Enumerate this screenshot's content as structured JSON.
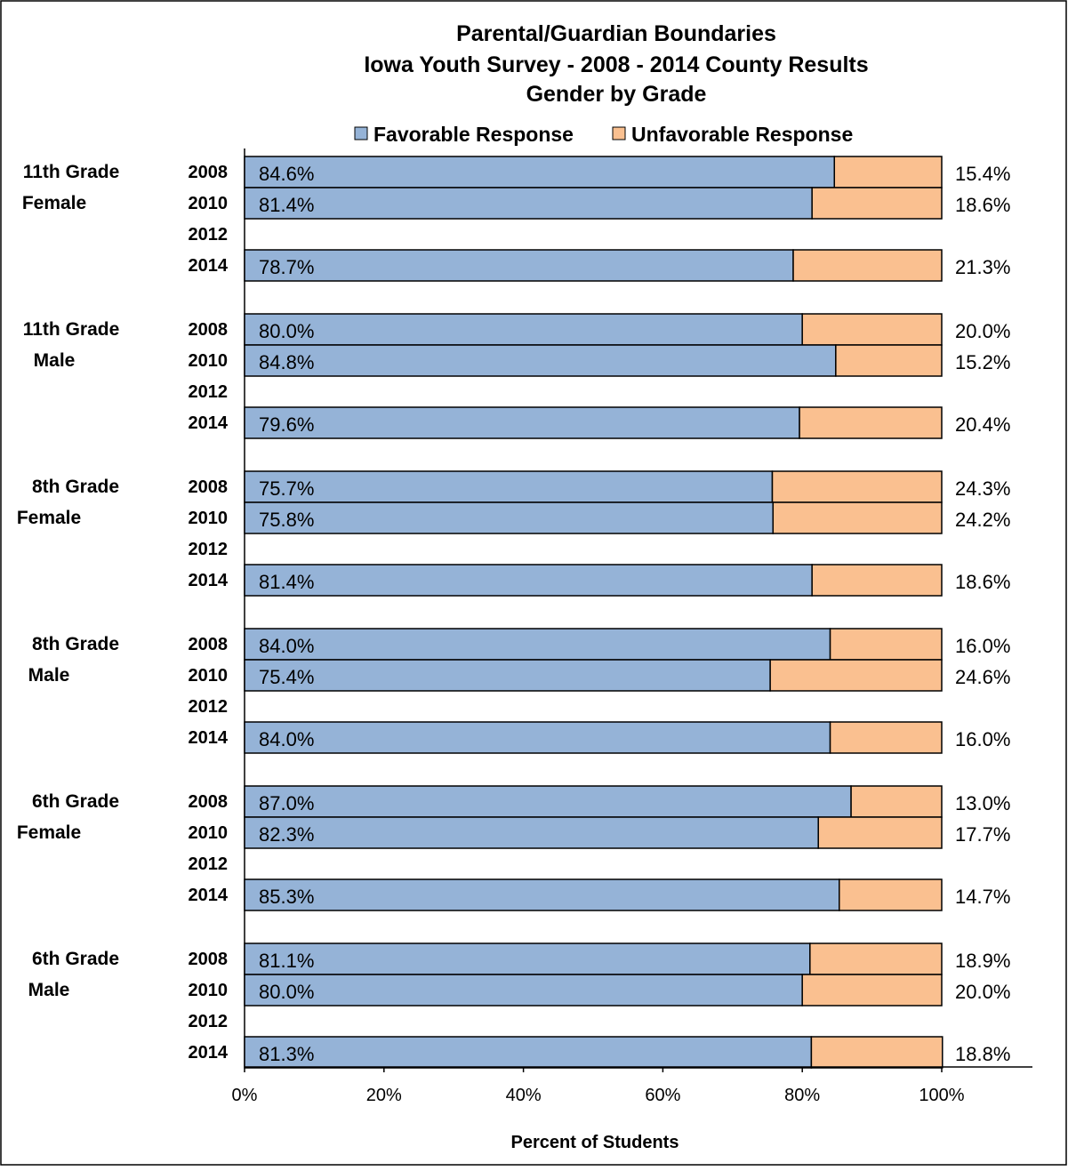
{
  "chart_data": {
    "type": "bar",
    "stacked": true,
    "orientation": "horizontal",
    "title": [
      "Parental/Guardian Boundaries",
      "Iowa Youth Survey - 2008 - 2014 County Results",
      "Gender by Grade"
    ],
    "xlabel": "Percent of Students",
    "xlim": [
      0,
      100
    ],
    "x_ticks": [
      "0%",
      "20%",
      "40%",
      "60%",
      "80%",
      "100%"
    ],
    "legend_position": "top",
    "series": [
      {
        "name": "Favorable Response",
        "color": "#95B3D7"
      },
      {
        "name": "Unfavorable Response",
        "color": "#FAC090"
      }
    ],
    "groups": [
      {
        "label": [
          "11th Grade",
          "Female"
        ],
        "rows": [
          {
            "year": "2008",
            "favorable": 84.6,
            "unfavorable": 15.4,
            "favorable_label": "84.6%",
            "unfavorable_label": "15.4%"
          },
          {
            "year": "2010",
            "favorable": 81.4,
            "unfavorable": 18.6,
            "favorable_label": "81.4%",
            "unfavorable_label": "18.6%"
          },
          {
            "year": "2012",
            "favorable": null,
            "unfavorable": null,
            "favorable_label": "",
            "unfavorable_label": ""
          },
          {
            "year": "2014",
            "favorable": 78.7,
            "unfavorable": 21.3,
            "favorable_label": "78.7%",
            "unfavorable_label": "21.3%"
          }
        ]
      },
      {
        "label": [
          "11th Grade",
          "Male"
        ],
        "rows": [
          {
            "year": "2008",
            "favorable": 80.0,
            "unfavorable": 20.0,
            "favorable_label": "80.0%",
            "unfavorable_label": "20.0%"
          },
          {
            "year": "2010",
            "favorable": 84.8,
            "unfavorable": 15.2,
            "favorable_label": "84.8%",
            "unfavorable_label": "15.2%"
          },
          {
            "year": "2012",
            "favorable": null,
            "unfavorable": null,
            "favorable_label": "",
            "unfavorable_label": ""
          },
          {
            "year": "2014",
            "favorable": 79.6,
            "unfavorable": 20.4,
            "favorable_label": "79.6%",
            "unfavorable_label": "20.4%"
          }
        ]
      },
      {
        "label": [
          "8th Grade",
          "Female"
        ],
        "rows": [
          {
            "year": "2008",
            "favorable": 75.7,
            "unfavorable": 24.3,
            "favorable_label": "75.7%",
            "unfavorable_label": "24.3%"
          },
          {
            "year": "2010",
            "favorable": 75.8,
            "unfavorable": 24.2,
            "favorable_label": "75.8%",
            "unfavorable_label": "24.2%"
          },
          {
            "year": "2012",
            "favorable": null,
            "unfavorable": null,
            "favorable_label": "",
            "unfavorable_label": ""
          },
          {
            "year": "2014",
            "favorable": 81.4,
            "unfavorable": 18.6,
            "favorable_label": "81.4%",
            "unfavorable_label": "18.6%"
          }
        ]
      },
      {
        "label": [
          "8th Grade",
          "Male"
        ],
        "rows": [
          {
            "year": "2008",
            "favorable": 84.0,
            "unfavorable": 16.0,
            "favorable_label": "84.0%",
            "unfavorable_label": "16.0%"
          },
          {
            "year": "2010",
            "favorable": 75.4,
            "unfavorable": 24.6,
            "favorable_label": "75.4%",
            "unfavorable_label": "24.6%"
          },
          {
            "year": "2012",
            "favorable": null,
            "unfavorable": null,
            "favorable_label": "",
            "unfavorable_label": ""
          },
          {
            "year": "2014",
            "favorable": 84.0,
            "unfavorable": 16.0,
            "favorable_label": "84.0%",
            "unfavorable_label": "16.0%"
          }
        ]
      },
      {
        "label": [
          "6th Grade",
          "Female"
        ],
        "rows": [
          {
            "year": "2008",
            "favorable": 87.0,
            "unfavorable": 13.0,
            "favorable_label": "87.0%",
            "unfavorable_label": "13.0%"
          },
          {
            "year": "2010",
            "favorable": 82.3,
            "unfavorable": 17.7,
            "favorable_label": "82.3%",
            "unfavorable_label": "17.7%"
          },
          {
            "year": "2012",
            "favorable": null,
            "unfavorable": null,
            "favorable_label": "",
            "unfavorable_label": ""
          },
          {
            "year": "2014",
            "favorable": 85.3,
            "unfavorable": 14.7,
            "favorable_label": "85.3%",
            "unfavorable_label": "14.7%"
          }
        ]
      },
      {
        "label": [
          "6th Grade",
          "Male"
        ],
        "rows": [
          {
            "year": "2008",
            "favorable": 81.1,
            "unfavorable": 18.9,
            "favorable_label": "81.1%",
            "unfavorable_label": "18.9%"
          },
          {
            "year": "2010",
            "favorable": 80.0,
            "unfavorable": 20.0,
            "favorable_label": "80.0%",
            "unfavorable_label": "20.0%"
          },
          {
            "year": "2012",
            "favorable": null,
            "unfavorable": null,
            "favorable_label": "",
            "unfavorable_label": ""
          },
          {
            "year": "2014",
            "favorable": 81.3,
            "unfavorable": 18.8,
            "favorable_label": "81.3%",
            "unfavorable_label": "18.8%"
          }
        ]
      }
    ]
  }
}
